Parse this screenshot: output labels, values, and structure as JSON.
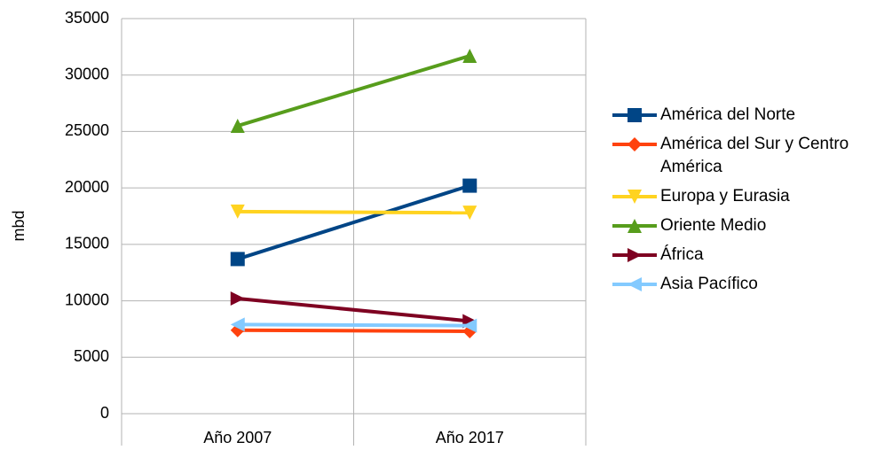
{
  "chart_data": {
    "type": "line",
    "y_label": "mbd",
    "categories": [
      "Año 2007",
      "Año 2017"
    ],
    "series": [
      {
        "name": "América del Norte",
        "color": "#004586",
        "marker": "square",
        "values": [
          13700,
          20200
        ]
      },
      {
        "name": "América del Sur y Centro América",
        "color": "#ff420e",
        "marker": "diamond",
        "values": [
          7400,
          7300
        ]
      },
      {
        "name": "Europa y Eurasia",
        "color": "#ffd320",
        "marker": "triangle-down",
        "values": [
          17900,
          17800
        ]
      },
      {
        "name": "Oriente Medio",
        "color": "#579d1c",
        "marker": "triangle-up",
        "values": [
          25500,
          31700
        ]
      },
      {
        "name": "África",
        "color": "#7e0021",
        "marker": "triangle-right",
        "values": [
          10200,
          8200
        ]
      },
      {
        "name": "Asia Pacífico",
        "color": "#83caff",
        "marker": "triangle-left",
        "values": [
          7900,
          7800
        ]
      }
    ],
    "ylim": [
      0,
      35000
    ],
    "yticks": [
      0,
      5000,
      10000,
      15000,
      20000,
      25000,
      30000,
      35000
    ],
    "grid": true,
    "legend": "right"
  }
}
